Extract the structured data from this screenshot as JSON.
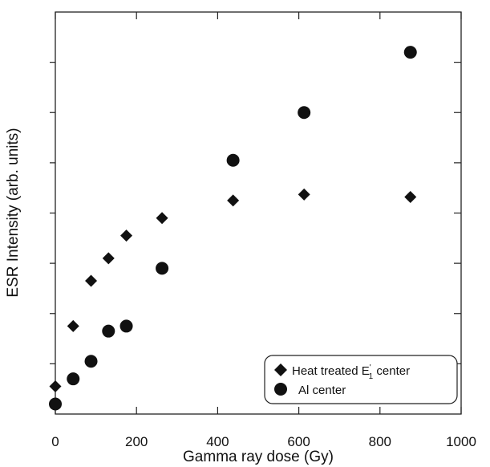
{
  "chart_data": {
    "type": "scatter",
    "xlabel": "Gamma ray dose (Gy)",
    "ylabel": "ESR Intensity (arb. units)",
    "xlim": [
      0,
      1000
    ],
    "ylim": [
      0,
      8
    ],
    "x_ticks": [
      0,
      200,
      400,
      600,
      800,
      1000
    ],
    "x_tick_labels": [
      "0",
      "200",
      "400",
      "600",
      "800",
      "1000"
    ],
    "y_ticks": [
      1,
      2,
      3,
      4,
      5,
      6,
      7
    ],
    "y_tick_labels_shown": false,
    "grid": false,
    "legend_position": "bottom-right",
    "series": [
      {
        "name_prefix": "Heat treated E",
        "name_prime": "'",
        "name_sub": "1",
        "name_suffix": " center",
        "marker": "diamond",
        "color": "#111111",
        "x": [
          0,
          44,
          88,
          131,
          175,
          263,
          438,
          613,
          875
        ],
        "y": [
          0.55,
          1.75,
          2.65,
          3.1,
          3.55,
          3.9,
          4.25,
          4.37,
          4.32
        ]
      },
      {
        "name": "Al center",
        "marker": "circle",
        "color": "#111111",
        "x": [
          0,
          44,
          88,
          131,
          175,
          263,
          438,
          613,
          875
        ],
        "y": [
          0.2,
          0.7,
          1.05,
          1.65,
          1.75,
          2.9,
          5.05,
          6.0,
          7.2
        ]
      }
    ]
  }
}
